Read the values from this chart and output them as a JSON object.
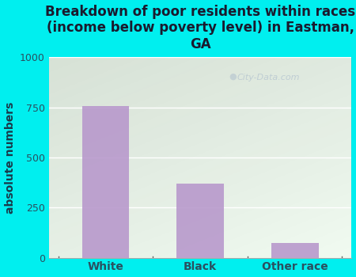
{
  "categories": [
    "White",
    "Black",
    "Other race"
  ],
  "values": [
    755,
    370,
    75
  ],
  "bar_color": "#b899cc",
  "title": "Breakdown of poor residents within races\n(income below poverty level) in Eastman,\nGA",
  "ylabel": "absolute numbers",
  "ylim": [
    0,
    1000
  ],
  "yticks": [
    0,
    250,
    500,
    750,
    1000
  ],
  "outer_bg_color": "#00efef",
  "title_color": "#1a1a2e",
  "axis_label_color": "#1a3a4a",
  "tick_label_color": "#2a5060",
  "watermark": "City-Data.com",
  "title_fontsize": 12,
  "ylabel_fontsize": 10
}
